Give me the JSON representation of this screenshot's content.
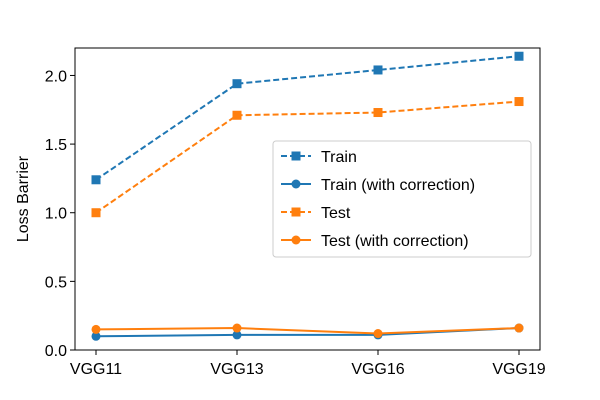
{
  "chart_data": {
    "type": "line",
    "categories": [
      "VGG11",
      "VGG13",
      "VGG16",
      "VGG19"
    ],
    "ylabel": "Loss Barrier",
    "xlabel": "",
    "ylim": [
      0.0,
      2.2
    ],
    "yticks": [
      "0.0",
      "0.5",
      "1.0",
      "1.5",
      "2.0"
    ],
    "grid": false,
    "legend_position": "center-right",
    "series": [
      {
        "name": "Train",
        "values": [
          1.24,
          1.94,
          2.04,
          2.14
        ],
        "color": "#1f77b4",
        "linestyle": "dashed",
        "marker": "square"
      },
      {
        "name": "Train (with correction)",
        "values": [
          0.1,
          0.11,
          0.11,
          0.16
        ],
        "color": "#1f77b4",
        "linestyle": "solid",
        "marker": "circle"
      },
      {
        "name": "Test",
        "values": [
          1.0,
          1.71,
          1.73,
          1.81
        ],
        "color": "#ff7f0e",
        "linestyle": "dashed",
        "marker": "square"
      },
      {
        "name": "Test (with correction)",
        "values": [
          0.15,
          0.16,
          0.12,
          0.16
        ],
        "color": "#ff7f0e",
        "linestyle": "solid",
        "marker": "circle"
      }
    ]
  }
}
